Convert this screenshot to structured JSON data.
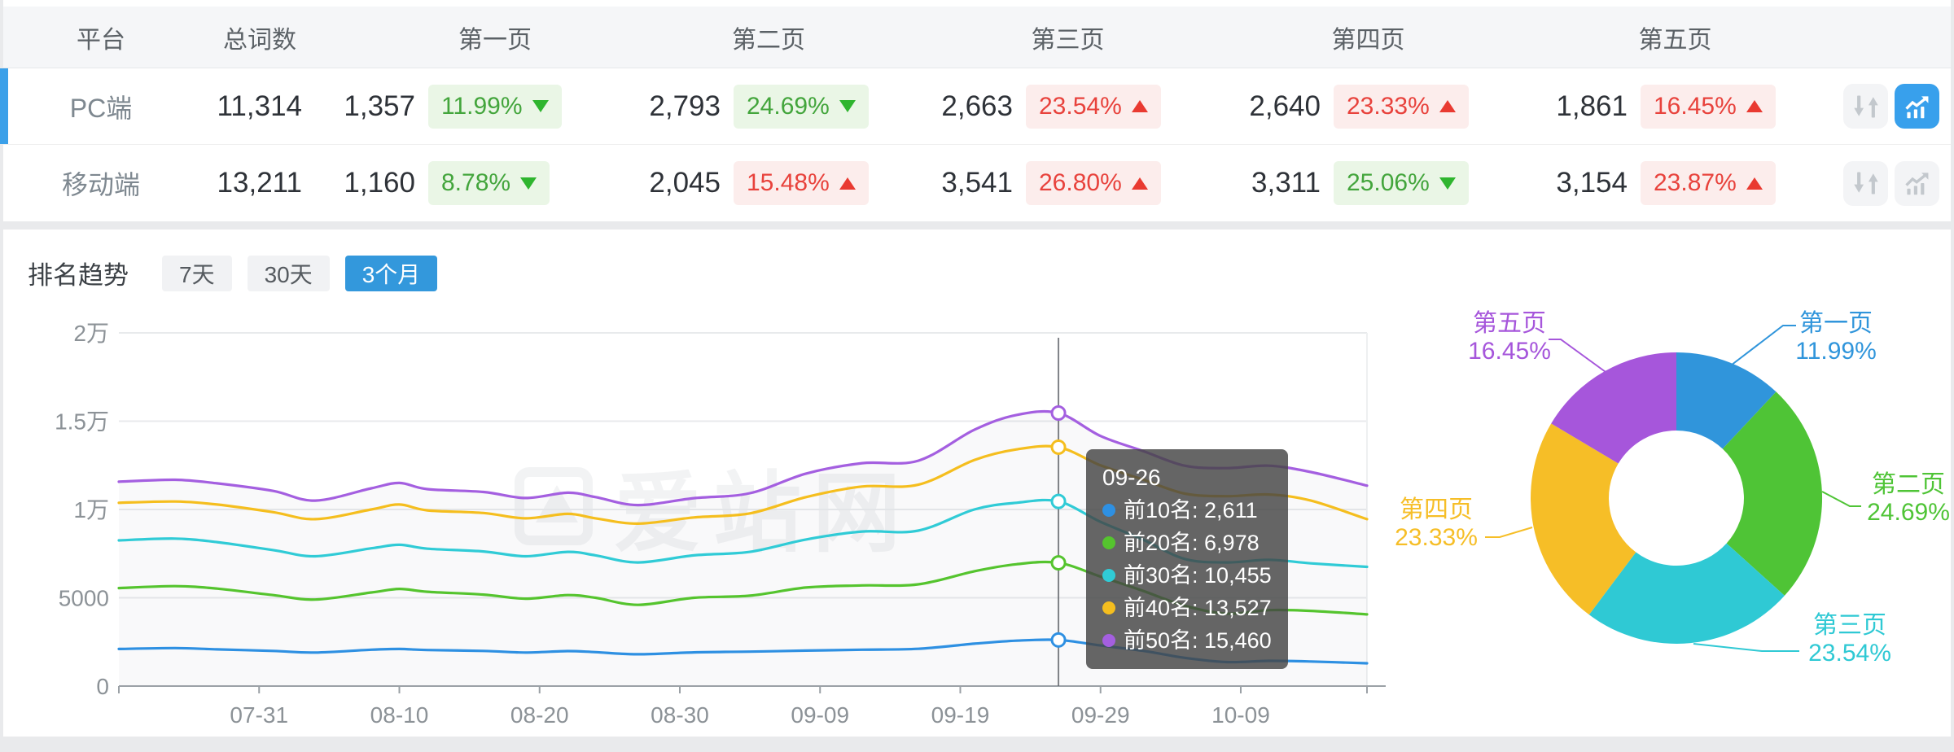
{
  "page": {
    "watermark": "爱站网"
  },
  "colors": {
    "accent_blue": "#3398dc",
    "row_select_blue": "#3ba0e9",
    "icon_active_bg": "#38a0ec",
    "icon_bg": "#f3f4f6",
    "icon_glyph": "#c3c8cd",
    "green_text": "#43a53c",
    "green_bg": "#eaf6e6",
    "green_tri": "#2fb52f",
    "red_text": "#e8423c",
    "red_bg": "#fcedec",
    "red_tri": "#e93a31",
    "grid_line": "#e8eaec",
    "axis_line": "#9ba1a6",
    "axis_text": "#8c9297"
  },
  "table": {
    "headers": {
      "platform": "平台",
      "total": "总词数",
      "pages": [
        "第一页",
        "第二页",
        "第三页",
        "第四页",
        "第五页"
      ]
    },
    "rows": [
      {
        "platform": "PC端",
        "total": "11,314",
        "selected": true,
        "chart_active": true,
        "pages": [
          {
            "count": "1,357",
            "pct": "11.99%",
            "direction": "down",
            "tone": "green"
          },
          {
            "count": "2,793",
            "pct": "24.69%",
            "direction": "down",
            "tone": "green"
          },
          {
            "count": "2,663",
            "pct": "23.54%",
            "direction": "up",
            "tone": "red"
          },
          {
            "count": "2,640",
            "pct": "23.33%",
            "direction": "up",
            "tone": "red"
          },
          {
            "count": "1,861",
            "pct": "16.45%",
            "direction": "up",
            "tone": "red"
          }
        ]
      },
      {
        "platform": "移动端",
        "total": "13,211",
        "selected": false,
        "chart_active": false,
        "pages": [
          {
            "count": "1,160",
            "pct": "8.78%",
            "direction": "down",
            "tone": "green"
          },
          {
            "count": "2,045",
            "pct": "15.48%",
            "direction": "up",
            "tone": "red"
          },
          {
            "count": "3,541",
            "pct": "26.80%",
            "direction": "up",
            "tone": "red"
          },
          {
            "count": "3,311",
            "pct": "25.06%",
            "direction": "down",
            "tone": "green"
          },
          {
            "count": "3,154",
            "pct": "23.87%",
            "direction": "up",
            "tone": "red"
          }
        ]
      }
    ]
  },
  "trend_section": {
    "title": "排名趋势",
    "ranges": [
      {
        "label": "7天",
        "active": false
      },
      {
        "label": "30天",
        "active": false
      },
      {
        "label": "3个月",
        "active": true
      }
    ]
  },
  "tooltip": {
    "date": "09-26",
    "items": [
      {
        "name": "前10名",
        "value": "2,611",
        "color": "#2e90e2"
      },
      {
        "name": "前20名",
        "value": "6,978",
        "color": "#55c42e"
      },
      {
        "name": "前30名",
        "value": "10,455",
        "color": "#30cbd6"
      },
      {
        "name": "前40名",
        "value": "13,527",
        "color": "#f5be1e"
      },
      {
        "name": "前50名",
        "value": "15,460",
        "color": "#a45fe0"
      }
    ]
  },
  "chart_data": [
    {
      "type": "line",
      "name": "ranking-trend",
      "title": "排名趋势（3个月）",
      "x_axis": {
        "day0_date": "07-21",
        "total_days": 89,
        "tick_labels": [
          "07-31",
          "08-10",
          "08-20",
          "08-30",
          "09-09",
          "09-19",
          "09-29",
          "10-09"
        ],
        "tick_day_index": [
          10,
          20,
          30,
          40,
          50,
          60,
          70,
          80
        ]
      },
      "y_axis": {
        "tick_labels": [
          "2万",
          "1.5万",
          "1万",
          "5000",
          "0"
        ],
        "min": 0,
        "max": 20000
      },
      "grid": true,
      "legend_position": "none",
      "hover": {
        "date": "09-26",
        "day_index": 67,
        "values": [
          2611,
          6978,
          10455,
          13527,
          15460
        ]
      },
      "series": [
        {
          "name": "前10名",
          "color": "#2e90e2",
          "points": [
            [
              0,
              2100
            ],
            [
              4,
              2150
            ],
            [
              7,
              2080
            ],
            [
              11,
              1990
            ],
            [
              14,
              1900
            ],
            [
              18,
              2060
            ],
            [
              20,
              2100
            ],
            [
              22,
              2040
            ],
            [
              26,
              1990
            ],
            [
              29,
              1900
            ],
            [
              32,
              1980
            ],
            [
              34,
              1920
            ],
            [
              37,
              1800
            ],
            [
              41,
              1910
            ],
            [
              45,
              1950
            ],
            [
              49,
              2010
            ],
            [
              53,
              2060
            ],
            [
              57,
              2110
            ],
            [
              61,
              2400
            ],
            [
              64,
              2570
            ],
            [
              67,
              2611
            ],
            [
              70,
              2300
            ],
            [
              73,
              2000
            ],
            [
              76,
              1600
            ],
            [
              79,
              1360
            ],
            [
              82,
              1430
            ],
            [
              85,
              1390
            ],
            [
              89,
              1290
            ]
          ]
        },
        {
          "name": "前20名",
          "color": "#55c42e",
          "points": [
            [
              0,
              5550
            ],
            [
              4,
              5660
            ],
            [
              7,
              5520
            ],
            [
              11,
              5150
            ],
            [
              14,
              4900
            ],
            [
              18,
              5300
            ],
            [
              20,
              5500
            ],
            [
              22,
              5340
            ],
            [
              26,
              5180
            ],
            [
              29,
              4950
            ],
            [
              32,
              5150
            ],
            [
              34,
              5000
            ],
            [
              37,
              4600
            ],
            [
              41,
              5000
            ],
            [
              45,
              5120
            ],
            [
              49,
              5580
            ],
            [
              53,
              5700
            ],
            [
              57,
              5760
            ],
            [
              61,
              6500
            ],
            [
              64,
              6900
            ],
            [
              67,
              6978
            ],
            [
              70,
              6200
            ],
            [
              73,
              5400
            ],
            [
              76,
              4550
            ],
            [
              79,
              4100
            ],
            [
              82,
              4300
            ],
            [
              85,
              4260
            ],
            [
              89,
              4060
            ]
          ]
        },
        {
          "name": "前30名",
          "color": "#30cbd6",
          "points": [
            [
              0,
              8250
            ],
            [
              4,
              8350
            ],
            [
              7,
              8150
            ],
            [
              11,
              7700
            ],
            [
              14,
              7350
            ],
            [
              18,
              7800
            ],
            [
              20,
              8000
            ],
            [
              22,
              7780
            ],
            [
              26,
              7620
            ],
            [
              29,
              7350
            ],
            [
              32,
              7600
            ],
            [
              34,
              7400
            ],
            [
              37,
              7000
            ],
            [
              41,
              7400
            ],
            [
              45,
              7600
            ],
            [
              49,
              8300
            ],
            [
              53,
              8750
            ],
            [
              57,
              8800
            ],
            [
              61,
              10000
            ],
            [
              64,
              10380
            ],
            [
              67,
              10455
            ],
            [
              70,
              9300
            ],
            [
              73,
              8300
            ],
            [
              76,
              7200
            ],
            [
              79,
              7000
            ],
            [
              82,
              7150
            ],
            [
              85,
              6950
            ],
            [
              89,
              6750
            ]
          ]
        },
        {
          "name": "前40名",
          "color": "#f5be1e",
          "points": [
            [
              0,
              10380
            ],
            [
              4,
              10450
            ],
            [
              7,
              10280
            ],
            [
              11,
              9850
            ],
            [
              14,
              9450
            ],
            [
              18,
              10000
            ],
            [
              20,
              10280
            ],
            [
              22,
              9950
            ],
            [
              26,
              9800
            ],
            [
              29,
              9500
            ],
            [
              32,
              9750
            ],
            [
              34,
              9500
            ],
            [
              37,
              9200
            ],
            [
              41,
              9550
            ],
            [
              45,
              9780
            ],
            [
              49,
              10700
            ],
            [
              53,
              11300
            ],
            [
              57,
              11400
            ],
            [
              61,
              12800
            ],
            [
              64,
              13400
            ],
            [
              67,
              13527
            ],
            [
              70,
              12500
            ],
            [
              73,
              11700
            ],
            [
              76,
              10900
            ],
            [
              79,
              10750
            ],
            [
              82,
              10850
            ],
            [
              85,
              10500
            ],
            [
              89,
              9450
            ]
          ]
        },
        {
          "name": "前50名",
          "color": "#a45fe0",
          "points": [
            [
              0,
              11570
            ],
            [
              4,
              11680
            ],
            [
              7,
              11480
            ],
            [
              11,
              11050
            ],
            [
              14,
              10500
            ],
            [
              18,
              11200
            ],
            [
              20,
              11500
            ],
            [
              22,
              11150
            ],
            [
              26,
              10990
            ],
            [
              29,
              10650
            ],
            [
              32,
              10950
            ],
            [
              34,
              10700
            ],
            [
              37,
              10250
            ],
            [
              41,
              10640
            ],
            [
              45,
              10920
            ],
            [
              49,
              12030
            ],
            [
              53,
              12620
            ],
            [
              57,
              12760
            ],
            [
              61,
              14510
            ],
            [
              64,
              15350
            ],
            [
              67,
              15460
            ],
            [
              70,
              14160
            ],
            [
              73,
              13320
            ],
            [
              76,
              12480
            ],
            [
              79,
              12340
            ],
            [
              82,
              12480
            ],
            [
              85,
              12120
            ],
            [
              89,
              11350
            ]
          ]
        }
      ]
    },
    {
      "type": "pie",
      "name": "page-distribution",
      "donut": true,
      "start_angle": "top",
      "direction": "clockwise",
      "slices": [
        {
          "label": "第一页",
          "percent": 11.99,
          "display": "11.99%",
          "color": "#3095db"
        },
        {
          "label": "第二页",
          "percent": 24.69,
          "display": "24.69%",
          "color": "#4fc436"
        },
        {
          "label": "第三页",
          "percent": 23.54,
          "display": "23.54%",
          "color": "#2fc9d4"
        },
        {
          "label": "第四页",
          "percent": 23.33,
          "display": "23.33%",
          "color": "#f6be27"
        },
        {
          "label": "第五页",
          "percent": 16.45,
          "display": "16.45%",
          "color": "#a656db"
        }
      ]
    }
  ]
}
